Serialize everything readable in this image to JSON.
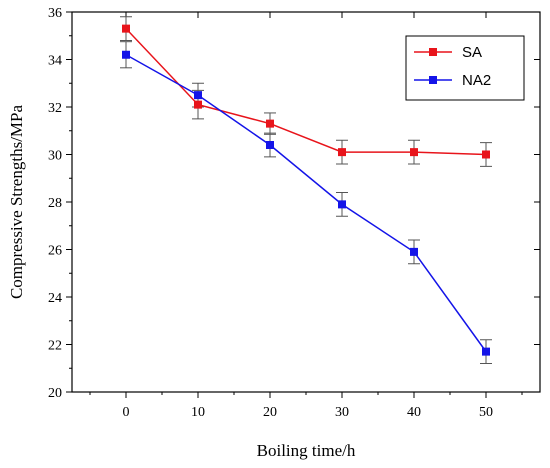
{
  "chart_data": {
    "type": "line",
    "title": "",
    "xlabel": "Boiling time/h",
    "ylabel": "Compressive Strengths/MPa",
    "x": [
      0,
      10,
      20,
      30,
      40,
      50
    ],
    "xlim": [
      -7.5,
      57.5
    ],
    "ylim": [
      20,
      36
    ],
    "xticks": [
      0,
      10,
      20,
      30,
      40,
      50
    ],
    "yticks": [
      20,
      22,
      24,
      26,
      28,
      30,
      32,
      34,
      36
    ],
    "grid": false,
    "legend_position": "top-right",
    "series": [
      {
        "name": "SA",
        "color": "#e8141b",
        "marker": "square",
        "values": [
          35.3,
          32.1,
          31.3,
          30.1,
          30.1,
          30.0
        ],
        "errors": [
          0.5,
          0.6,
          0.45,
          0.5,
          0.5,
          0.5
        ]
      },
      {
        "name": "NA2",
        "color": "#1414e8",
        "marker": "square",
        "values": [
          34.2,
          32.5,
          30.4,
          27.9,
          25.9,
          21.7
        ],
        "errors": [
          0.55,
          0.5,
          0.5,
          0.5,
          0.5,
          0.5
        ]
      }
    ]
  }
}
